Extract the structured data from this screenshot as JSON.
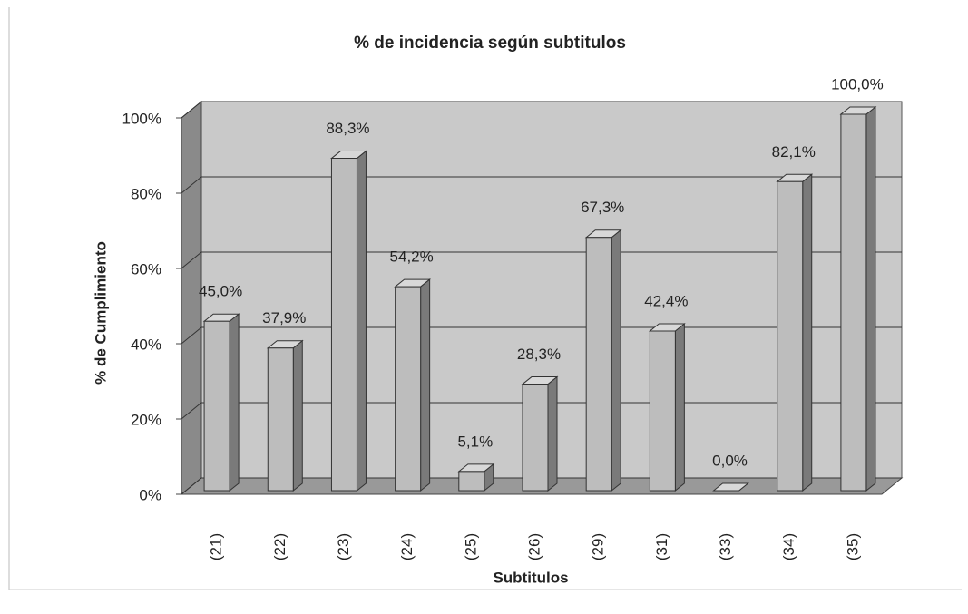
{
  "chart_data": {
    "type": "bar3d",
    "title": "% de incidencia según subtitulos",
    "xlabel": "Subtitulos",
    "ylabel": "% de Cumplimiento",
    "categories": [
      "(21)",
      "(22)",
      "(23)",
      "(24)",
      "(25)",
      "(26)",
      "(29)",
      "(31)",
      "(33)",
      "(34)",
      "(35)"
    ],
    "values": [
      45.0,
      37.9,
      88.3,
      54.2,
      5.1,
      28.3,
      67.3,
      42.4,
      0.0,
      82.1,
      100.0
    ],
    "value_labels": [
      "45,0%",
      "37,9%",
      "88,3%",
      "54,2%",
      "5,1%",
      "28,3%",
      "67,3%",
      "42,4%",
      "0,0%",
      "82,1%",
      "100,0%"
    ],
    "color": "#bdbdbd",
    "ylim": [
      0,
      100
    ],
    "yticks": [
      {
        "value": 0,
        "label": "0%"
      },
      {
        "value": 20,
        "label": "20%"
      },
      {
        "value": 40,
        "label": "40%"
      },
      {
        "value": 60,
        "label": "60%"
      },
      {
        "value": 80,
        "label": "80%"
      },
      {
        "value": 100,
        "label": "100%"
      }
    ],
    "grid": true
  }
}
